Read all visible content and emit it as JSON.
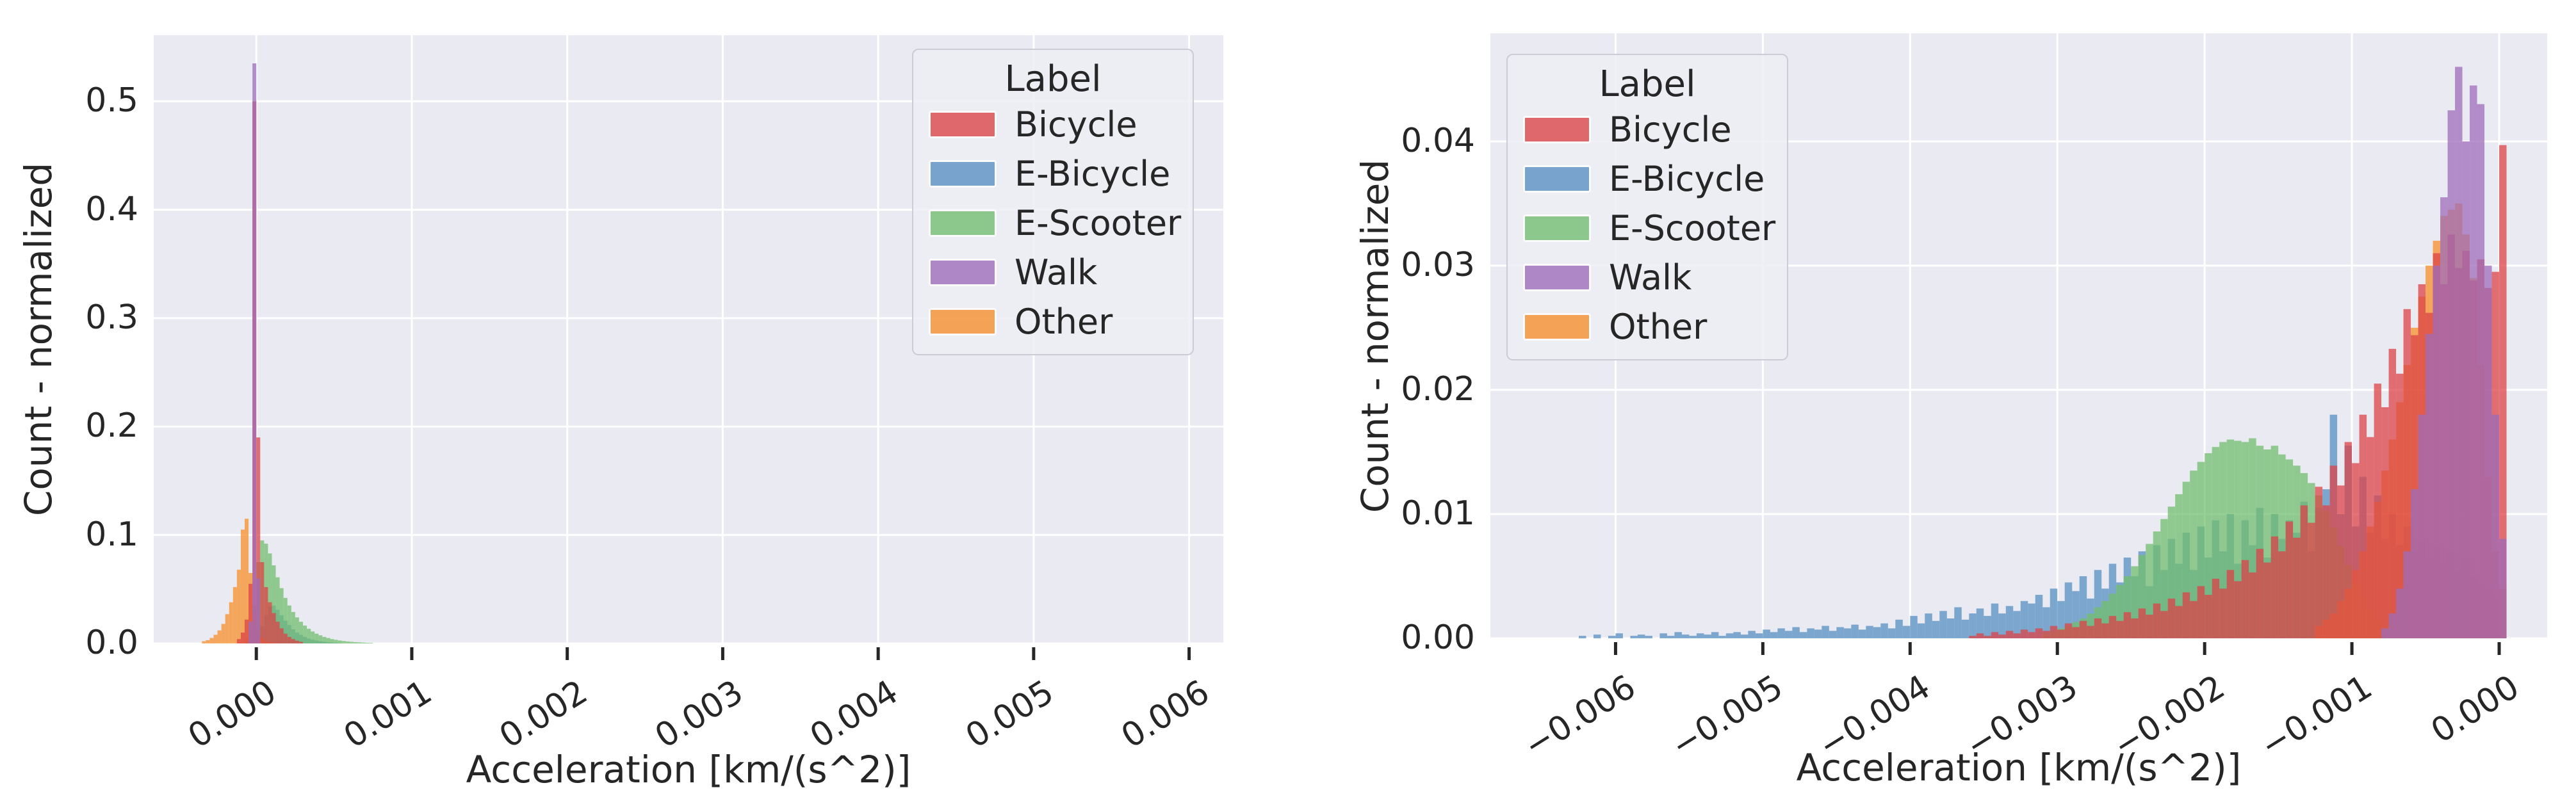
{
  "palette": {
    "plot_background": "#eaeaf2",
    "gridline": "#ffffff",
    "text": "#262626",
    "bicycle_red": "#dc4347",
    "ebicycle_blue": "#568fc2",
    "escooter_green": "#71be6e",
    "walk_purple": "#9d6cba",
    "other_orange": "#f78f2b"
  },
  "legend": {
    "title": "Label",
    "entries": [
      {
        "label": "Bicycle",
        "color": "#dc4347"
      },
      {
        "label": "E-Bicycle",
        "color": "#568fc2"
      },
      {
        "label": "E-Scooter",
        "color": "#71be6e"
      },
      {
        "label": "Walk",
        "color": "#9d6cba"
      },
      {
        "label": "Other",
        "color": "#f78f2b"
      }
    ]
  },
  "chart_data": [
    {
      "type": "histogram",
      "xlabel": "Acceleration [km/(s^2)]",
      "ylabel": "Count - normalized",
      "legend": {
        "title": "Label"
      },
      "xlim": [
        -0.00066,
        0.00622
      ],
      "ylim": [
        0,
        0.561
      ],
      "grid": true,
      "legend_position": "upper right",
      "xticks": {
        "values": [
          0,
          0.001,
          0.002,
          0.003,
          0.004,
          0.005,
          0.006
        ],
        "labels": [
          "0.000",
          "0.001",
          "0.002",
          "0.003",
          "0.004",
          "0.005",
          "0.006"
        ]
      },
      "yticks": {
        "values": [
          0,
          0.1,
          0.2,
          0.3,
          0.4,
          0.5
        ],
        "labels": [
          "0.0",
          "0.1",
          "0.2",
          "0.3",
          "0.4",
          "0.5"
        ]
      },
      "draw_order": [
        "E-Bicycle",
        "E-Scooter",
        "Other",
        "Bicycle",
        "Walk"
      ],
      "series": [
        {
          "name": "Other",
          "color": "#f78f2b",
          "start": -0.00035,
          "dx": 2.5e-05,
          "heights": [
            0.002,
            0.003,
            0.005,
            0.008,
            0.012,
            0.018,
            0.027,
            0.038,
            0.052,
            0.068,
            0.105,
            0.115,
            0.065,
            0.028,
            0.012,
            0.005,
            0.002,
            0.001,
            0.0006,
            0.0004
          ]
        },
        {
          "name": "E-Scooter",
          "color": "#71be6e",
          "start": -7.5e-05,
          "dx": 2.5e-05,
          "heights": [
            0.004,
            0.012,
            0.035,
            0.075,
            0.095,
            0.092,
            0.083,
            0.072,
            0.061,
            0.051,
            0.042,
            0.035,
            0.029,
            0.024,
            0.02,
            0.0165,
            0.0135,
            0.011,
            0.009,
            0.0075,
            0.006,
            0.005,
            0.004,
            0.0033,
            0.0027,
            0.0022,
            0.0018,
            0.0015,
            0.0012,
            0.001,
            0.0008,
            0.0006,
            0.0005
          ]
        },
        {
          "name": "E-Bicycle",
          "color": "#568fc2",
          "start": -2.5e-05,
          "dx": 2.5e-05,
          "heights": [
            0.003,
            0.008,
            0.016,
            0.026,
            0.034,
            0.035,
            0.031,
            0.026,
            0.021,
            0.017,
            0.013,
            0.01,
            0.008,
            0.006,
            0.0045,
            0.0035,
            0.0027,
            0.002,
            0.0015,
            0.0011,
            0.0008,
            0.0006,
            0.0004
          ]
        },
        {
          "name": "Bicycle",
          "color": "#dc4347",
          "start": -0.000125,
          "dx": 2.5e-05,
          "heights": [
            0.004,
            0.01,
            0.022,
            0.055,
            0.5,
            0.19,
            0.075,
            0.052,
            0.038,
            0.028,
            0.02,
            0.014,
            0.009,
            0.006,
            0.004,
            0.0025,
            0.0015
          ]
        },
        {
          "name": "Walk",
          "color": "#9d6cba",
          "start": -5e-05,
          "dx": 2.5e-05,
          "heights": [
            0.02,
            0.535,
            0.06
          ]
        }
      ]
    },
    {
      "type": "histogram",
      "xlabel": "Acceleration [km/(s^2)]",
      "ylabel": "Count - normalized",
      "legend": {
        "title": "Label"
      },
      "xlim": [
        -0.00685,
        0.000326
      ],
      "ylim": [
        0,
        0.0487
      ],
      "grid": true,
      "legend_position": "upper left",
      "xticks": {
        "values": [
          -0.006,
          -0.005,
          -0.004,
          -0.003,
          -0.002,
          -0.001,
          0
        ],
        "labels": [
          "−0.006",
          "−0.005",
          "−0.004",
          "−0.003",
          "−0.002",
          "−0.001",
          "0.000"
        ]
      },
      "yticks": {
        "values": [
          0,
          0.01,
          0.02,
          0.03,
          0.04
        ],
        "labels": [
          "0.00",
          "0.01",
          "0.02",
          "0.03",
          "0.04"
        ]
      },
      "draw_order": [
        "E-Bicycle",
        "E-Scooter",
        "Other",
        "Bicycle",
        "Walk"
      ],
      "series": [
        {
          "name": "E-Bicycle",
          "color": "#568fc2",
          "start": -0.00625,
          "dx": 5e-05,
          "heights": [
            0.0002,
            0,
            0.0003,
            0,
            0.0002,
            0.0004,
            0,
            0.0002,
            0.0003,
            0.0002,
            0,
            0.0004,
            0.0002,
            0.0005,
            0.0003,
            0.0002,
            0.0004,
            0.0003,
            0.0005,
            0.0002,
            0.0004,
            0.0005,
            0.0003,
            0.0006,
            0.0004,
            0.0007,
            0.0005,
            0.0008,
            0.0006,
            0.0009,
            0.0005,
            0.0008,
            0.0007,
            0.001,
            0.0006,
            0.0009,
            0.0008,
            0.0011,
            0.0007,
            0.001,
            0.0009,
            0.0012,
            0.0008,
            0.0015,
            0.001,
            0.0018,
            0.0012,
            0.002,
            0.0014,
            0.0022,
            0.0016,
            0.0025,
            0.0015,
            0.002,
            0.0024,
            0.0018,
            0.0028,
            0.002,
            0.0026,
            0.0022,
            0.003,
            0.0028,
            0.0035,
            0.0025,
            0.004,
            0.003,
            0.0045,
            0.0038,
            0.005,
            0.0032,
            0.0055,
            0.004,
            0.006,
            0.0045,
            0.0065,
            0.005,
            0.007,
            0.0042,
            0.0075,
            0.0055,
            0.008,
            0.006,
            0.0085,
            0.0055,
            0.009,
            0.0065,
            0.0095,
            0.007,
            0.01,
            0.006,
            0.0095,
            0.0075,
            0.0105,
            0.0065,
            0.01,
            0.008,
            0.0095,
            0.0085,
            0.011,
            0.007,
            0.0105,
            0.012,
            0.018,
            0.01,
            0.0155,
            0.009,
            0.013,
            0.0085,
            0.0115,
            0.008,
            0.01,
            0.0075,
            0.009,
            0.007,
            0.008,
            0.0065,
            0.0075,
            0.006,
            0.007,
            0.0055,
            0.0065,
            0.005,
            0.0045,
            0.004,
            0.0035
          ]
        },
        {
          "name": "E-Scooter",
          "color": "#71be6e",
          "start": -0.0031,
          "dx": 5e-05,
          "heights": [
            0.0004,
            0.0006,
            0.0008,
            0.001,
            0.0013,
            0.0016,
            0.002,
            0.0025,
            0.003,
            0.0036,
            0.0043,
            0.005,
            0.0058,
            0.0067,
            0.0076,
            0.0086,
            0.0096,
            0.0106,
            0.0116,
            0.0126,
            0.0135,
            0.0142,
            0.0149,
            0.0154,
            0.0158,
            0.016,
            0.0159,
            0.0158,
            0.0161,
            0.0155,
            0.0152,
            0.0155,
            0.0148,
            0.0144,
            0.0139,
            0.0133,
            0.0125,
            0.0115,
            0.0103,
            0.0089,
            0.0074,
            0.0059,
            0.0045,
            0.0033,
            0.0023,
            0.0015,
            0.0009,
            0.0005,
            0.0003,
            0.0002
          ]
        },
        {
          "name": "Other",
          "color": "#f78f2b",
          "start": -0.00125,
          "dx": 5e-05,
          "heights": [
            0.001,
            0.0015,
            0.002,
            0.003,
            0.004,
            0.0055,
            0.007,
            0.009,
            0.011,
            0.0135,
            0.016,
            0.019,
            0.022,
            0.025,
            0.0275,
            0.03,
            0.032,
            0.034,
            0.0345,
            0.035,
            0.0325,
            0.029,
            0.022,
            0.013,
            0.007,
            0.004
          ]
        },
        {
          "name": "Bicycle",
          "color": "#dc4347",
          "start": -0.0036,
          "dx": 5e-05,
          "heights": [
            0.0002,
            0.0004,
            0.0002,
            0.0005,
            0.0003,
            0.0006,
            0.0004,
            0.0007,
            0.0005,
            0.0008,
            0.0006,
            0.001,
            0.0007,
            0.0012,
            0.0009,
            0.0014,
            0.001,
            0.0016,
            0.0012,
            0.0018,
            0.0014,
            0.0021,
            0.0016,
            0.0024,
            0.0019,
            0.0028,
            0.0022,
            0.0032,
            0.0026,
            0.0037,
            0.003,
            0.0042,
            0.0035,
            0.0048,
            0.004,
            0.0055,
            0.0046,
            0.0063,
            0.0053,
            0.0072,
            0.0061,
            0.0082,
            0.007,
            0.0094,
            0.0081,
            0.0107,
            0.0093,
            0.0122,
            0.0107,
            0.0139,
            0.0123,
            0.0158,
            0.0141,
            0.018,
            0.0162,
            0.0205,
            0.0186,
            0.0233,
            0.0213,
            0.0265,
            0.0244,
            0.0285,
            0.0262,
            0.031,
            0.0285,
            0.0325,
            0.0298,
            0.0312,
            0.0288,
            0.0305,
            0.0282,
            0.0295,
            0.0397
          ]
        },
        {
          "name": "Walk",
          "color": "#9d6cba",
          "start": -0.0008,
          "dx": 5e-05,
          "heights": [
            0.0008,
            0.002,
            0.004,
            0.007,
            0.012,
            0.018,
            0.0245,
            0.03,
            0.0355,
            0.0425,
            0.046,
            0.04,
            0.0445,
            0.043,
            0.03,
            0.018,
            0.008
          ]
        }
      ]
    }
  ]
}
